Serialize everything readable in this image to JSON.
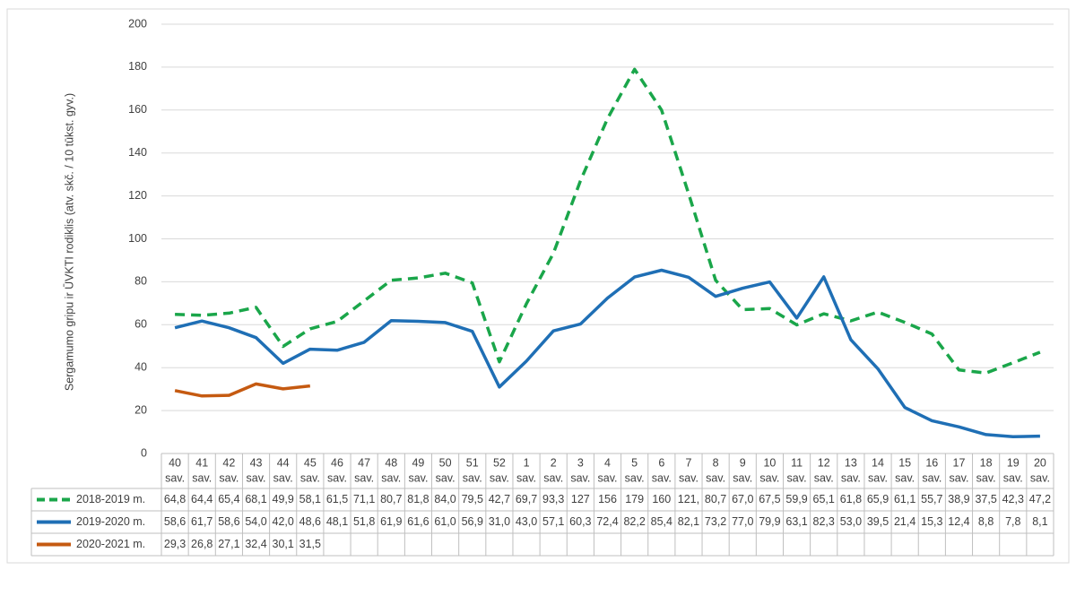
{
  "chart_data": {
    "type": "line",
    "y_label": "Sergamumo gripu ir ŪVKTI rodiklis (atv. skč. / 10 tūkst. gyv.)",
    "categories": [
      "40",
      "41",
      "42",
      "43",
      "44",
      "45",
      "46",
      "47",
      "48",
      "49",
      "50",
      "51",
      "52",
      "1",
      "2",
      "3",
      "4",
      "5",
      "6",
      "7",
      "8",
      "9",
      "10",
      "11",
      "12",
      "13",
      "14",
      "15",
      "16",
      "17",
      "18",
      "19",
      "20"
    ],
    "category_suffix": "sav.",
    "ylim": [
      0,
      200
    ],
    "yticks": [
      0,
      20,
      40,
      60,
      80,
      100,
      120,
      140,
      160,
      180,
      200
    ],
    "grid": true,
    "series": [
      {
        "name": "2018-2019 m.",
        "color": "#1aa64a",
        "dashed": true,
        "values": [
          64.8,
          64.4,
          65.4,
          68.1,
          49.9,
          58.1,
          61.5,
          71.1,
          80.7,
          81.8,
          84.0,
          79.5,
          42.7,
          69.7,
          93.3,
          127,
          156,
          179,
          160,
          121,
          80.7,
          67.0,
          67.5,
          59.9,
          65.1,
          61.8,
          65.9,
          61.1,
          55.7,
          38.9,
          37.5,
          42.3,
          47.2
        ],
        "value_labels": [
          "64,8",
          "64,4",
          "65,4",
          "68,1",
          "49,9",
          "58,1",
          "61,5",
          "71,1",
          "80,7",
          "81,8",
          "84,0",
          "79,5",
          "42,7",
          "69,7",
          "93,3",
          "127",
          "156",
          "179",
          "160",
          "121,",
          "80,7",
          "67,0",
          "67,5",
          "59,9",
          "65,1",
          "61,8",
          "65,9",
          "61,1",
          "55,7",
          "38,9",
          "37,5",
          "42,3",
          "47,2"
        ]
      },
      {
        "name": "2019-2020 m.",
        "color": "#1f6fb5",
        "dashed": false,
        "values": [
          58.6,
          61.7,
          58.6,
          54.0,
          42.0,
          48.6,
          48.1,
          51.8,
          61.9,
          61.6,
          61.0,
          56.9,
          31.0,
          43.0,
          57.1,
          60.3,
          72.4,
          82.2,
          85.4,
          82.1,
          73.2,
          77.0,
          79.9,
          63.1,
          82.3,
          53.0,
          39.5,
          21.4,
          15.3,
          12.4,
          8.8,
          7.8,
          8.1
        ],
        "value_labels": [
          "58,6",
          "61,7",
          "58,6",
          "54,0",
          "42,0",
          "48,6",
          "48,1",
          "51,8",
          "61,9",
          "61,6",
          "61,0",
          "56,9",
          "31,0",
          "43,0",
          "57,1",
          "60,3",
          "72,4",
          "82,2",
          "85,4",
          "82,1",
          "73,2",
          "77,0",
          "79,9",
          "63,1",
          "82,3",
          "53,0",
          "39,5",
          "21,4",
          "15,3",
          "12,4",
          "8,8",
          "7,8",
          "8,1"
        ]
      },
      {
        "name": "2020-2021 m.",
        "color": "#c55a11",
        "dashed": false,
        "values": [
          29.3,
          26.8,
          27.1,
          32.4,
          30.1,
          31.5,
          null,
          null,
          null,
          null,
          null,
          null,
          null,
          null,
          null,
          null,
          null,
          null,
          null,
          null,
          null,
          null,
          null,
          null,
          null,
          null,
          null,
          null,
          null,
          null,
          null,
          null,
          null
        ],
        "value_labels": [
          "29,3",
          "26,8",
          "27,1",
          "32,4",
          "30,1",
          "31,5",
          null,
          null,
          null,
          null,
          null,
          null,
          null,
          null,
          null,
          null,
          null,
          null,
          null,
          null,
          null,
          null,
          null,
          null,
          null,
          null,
          null,
          null,
          null,
          null,
          null,
          null,
          null
        ]
      }
    ]
  }
}
